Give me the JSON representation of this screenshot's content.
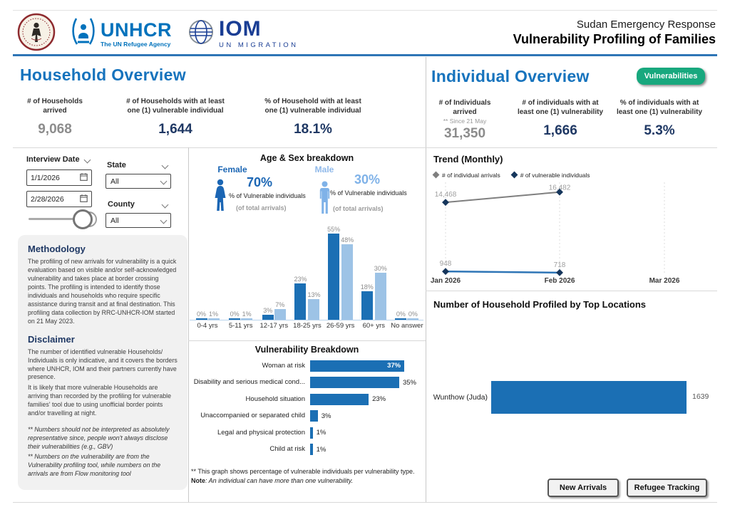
{
  "colors": {
    "accent_blue": "#1673BD",
    "navy": "#1F3864",
    "gray_value": "#8C8C8C",
    "bar_dark": "#1B6FB4",
    "bar_light": "#9DC3E6",
    "female_blue": "#1B66B4",
    "male_blue": "#7FB2E8",
    "green_button": "#18A87E",
    "trend_arrivals_line": "#7F7F7F",
    "trend_vulnerable_line": "#2E75B6",
    "marker_navy": "#16365C",
    "header_rule": "#2E75B6"
  },
  "header": {
    "unhcr_name": "UNHCR",
    "unhcr_tagline": "The UN Refugee Agency",
    "iom_name": "IOM",
    "iom_tagline": "UN MIGRATION",
    "subtitle": "Sudan Emergency Response",
    "title": "Vulnerability Profiling of Families"
  },
  "household": {
    "section_title": "Household Overview",
    "kpis": [
      {
        "label_line1": "# of Households",
        "label_line2": "arrived",
        "value": "9,068"
      },
      {
        "label_line1": "# of Households with at least",
        "label_line2": "one (1) vulnerable individual",
        "value": "1,644"
      },
      {
        "label_line1": "% of Household with at least",
        "label_line2": "one (1) vulnerable individual",
        "value": "18.1%"
      }
    ],
    "filters": {
      "date_label": "Interview Date",
      "date_from": "1/1/2026",
      "date_to": "2/28/2026",
      "state_label": "State",
      "state_value": "All",
      "county_label": "County",
      "county_value": "All"
    },
    "methodology": {
      "title": "Methodology",
      "body": "The profiling of new arrivals for vulnerability is a quick evaluation based on visible and/or self-acknowledged vulnerability and takes place at border crossing points. The profiling is intended to identify those individuals and households who require specific assistance during transit and at final destination. This profiling data collection by RRC-UNHCR-IOM started on 21 May 2023."
    },
    "disclaimer": {
      "title": "Disclaimer",
      "body1": "The number of identified vulnerable Households/ Individuals is only indicative, and it covers the borders where UNHCR, IOM and their partners currently have presence.",
      "body2": "It is likely that more vulnerable Households are arriving than recorded by the profiling for vulnerable families' tool due to using unofficial border points and/or travelling at night.",
      "footnote1": "**  Numbers should not be interpreted as absolutely representative since, people won't always disclose their vulnerabilities (e.g., GBV)",
      "footnote2": "** Numbers on the vulnerability are from the Vulnerability profiling tool, while numbers on the arrivals are from Flow monitoring tool"
    }
  },
  "individual": {
    "section_title": "Individual Overview",
    "vulnerabilities_button": "Vulnerabilities",
    "kpis": [
      {
        "label_line1": "# of Individuals",
        "label_line2": "arrived",
        "note": "** Since 21 May",
        "value": "31,350"
      },
      {
        "label_line1": "# of individuals with at",
        "label_line2": "least one (1) vulnerability",
        "value": "1,666"
      },
      {
        "label_line1": "% of individuals with at",
        "label_line2": "least one (1) vulnerability",
        "value": "5.3%"
      }
    ]
  },
  "chart_data": [
    {
      "id": "age_sex",
      "type": "bar",
      "title": "Age & Sex breakdown",
      "female": {
        "label": "Female",
        "pct": "70%",
        "caption1": "% of Vulnerable individuals",
        "caption2": "(of total arrivals)"
      },
      "male": {
        "label": "Male",
        "pct": "30%",
        "caption1": "% of Vulnerable individuals",
        "caption2": "(of total arrivals)"
      },
      "categories": [
        "0-4 yrs",
        "5-11 yrs",
        "12-17 yrs",
        "18-25 yrs",
        "26-59 yrs",
        "60+ yrs",
        "No answer"
      ],
      "series": [
        {
          "name": "Female",
          "values": [
            0,
            0,
            3,
            23,
            55,
            18,
            0
          ]
        },
        {
          "name": "Male",
          "values": [
            1,
            1,
            7,
            13,
            48,
            30,
            0
          ]
        }
      ],
      "unit": "%",
      "ylim": [
        0,
        60
      ],
      "grid": false
    },
    {
      "id": "vulnerability_breakdown",
      "type": "bar",
      "title": "Vulnerability Breakdown",
      "categories": [
        "Woman at risk",
        "Disability and serious medical cond...",
        "Household situation",
        "Unaccompanied or separated child",
        "Legal and physical protection",
        "Child at risk"
      ],
      "values": [
        37,
        35,
        23,
        3,
        1,
        1
      ],
      "unit": "%",
      "orientation": "horizontal",
      "footnote_line1": "** This graph shows percentage of vulnerable individuals per vulnerability type.",
      "footnote_note_label": "Note",
      "footnote_line2": ": An individual can have more than one vulnerability."
    },
    {
      "id": "trend_monthly",
      "type": "line",
      "title": "Trend (Monthly)",
      "x": [
        "Jan 2026",
        "Feb 2026",
        "Mar 2026"
      ],
      "series": [
        {
          "name": "# of individual arrivals",
          "values": [
            14468,
            16482,
            null
          ],
          "labels": [
            "14,468",
            "16,482"
          ]
        },
        {
          "name": "# of vulnerable individuals",
          "values": [
            948,
            718,
            null
          ],
          "labels": [
            "948",
            "718"
          ]
        }
      ],
      "legend_position": "top",
      "grid": "vertical-dashed",
      "ylim": [
        0,
        17000
      ]
    },
    {
      "id": "top_locations",
      "type": "bar",
      "orientation": "horizontal",
      "title": "Number of Household Profiled by Top Locations",
      "categories": [
        "Wunthow (Juda)"
      ],
      "values": [
        1639
      ]
    }
  ],
  "footer_buttons": [
    {
      "label": "New Arrivals"
    },
    {
      "label": "Refugee Tracking"
    }
  ]
}
